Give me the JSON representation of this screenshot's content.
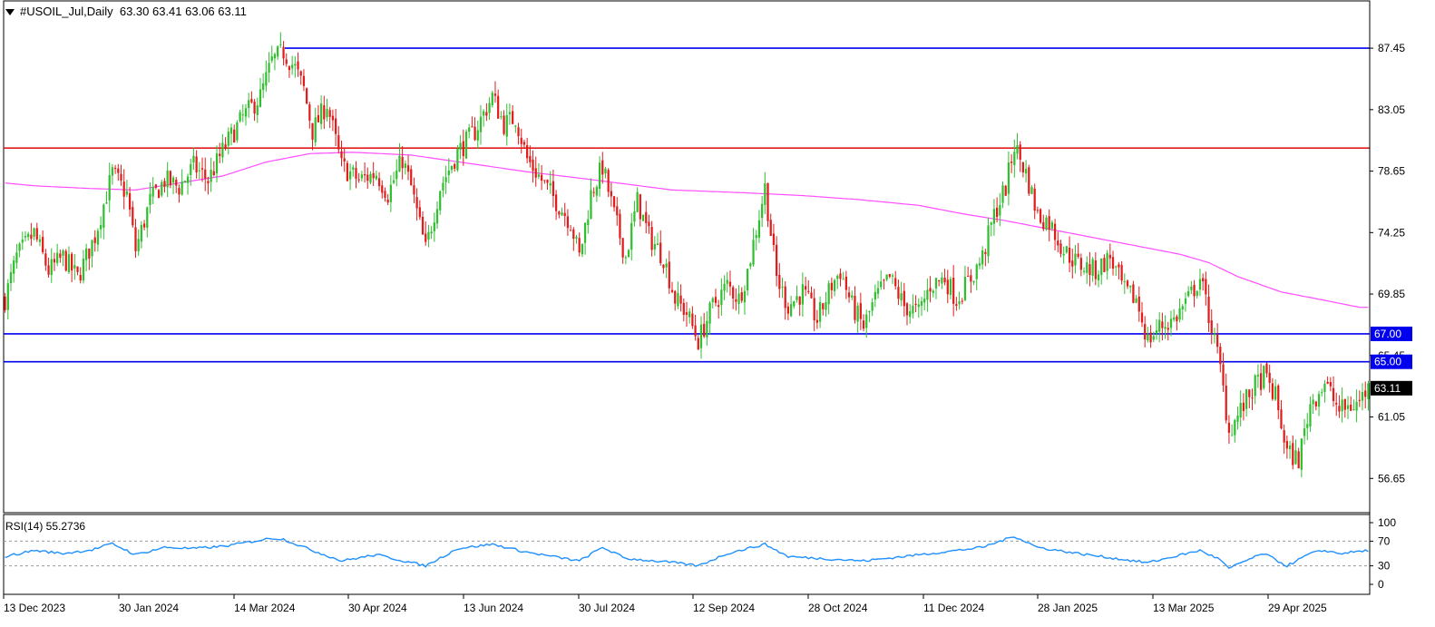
{
  "header": {
    "symbol_label": "#USOIL_Jul,Daily",
    "ohlc": "63.30 63.41 63.06 63.11"
  },
  "rsi_panel": {
    "label": "RSI(14) 55.2736",
    "value": 55.2736,
    "levels": [
      70,
      30
    ],
    "axis_labels": [
      "100",
      "70",
      "30",
      "0"
    ]
  },
  "colors": {
    "bull": "#2fbf2f",
    "bear": "#e21b1b",
    "ma": "#ff4dff",
    "support": "#0000ee",
    "resistance": "#e21b1b",
    "rsi": "#1e90ff",
    "price_tag": "#000000",
    "level_tag": "#0000ee"
  },
  "chart_data": {
    "type": "candlestick",
    "y_ticks": [
      "87.45",
      "83.05",
      "78.65",
      "74.25",
      "69.85",
      "65.45",
      "61.05",
      "56.65"
    ],
    "x_ticks": [
      "13 Dec 2023",
      "30 Jan 2024",
      "14 Mar 2024",
      "30 Apr 2024",
      "13 Jun 2024",
      "30 Jul 2024",
      "12 Sep 2024",
      "28 Oct 2024",
      "11 Dec 2024",
      "28 Jan 2025",
      "13 Mar 2025",
      "29 Apr 2025"
    ],
    "ylim": [
      54.2,
      89.6
    ],
    "horizontal_lines": [
      {
        "price": 87.45,
        "color": "#0000ee"
      },
      {
        "price": 80.3,
        "color": "#e21b1b"
      },
      {
        "price": 67.0,
        "color": "#0000ee",
        "tag": "67.00"
      },
      {
        "price": 65.0,
        "color": "#0000ee",
        "tag": "65.00"
      }
    ],
    "last_price": {
      "price": 63.11,
      "tag": "63.11"
    },
    "close_path": [
      [
        0,
        69.5
      ],
      [
        4,
        72.5
      ],
      [
        10,
        74.2
      ],
      [
        15,
        71.5
      ],
      [
        20,
        72.5
      ],
      [
        25,
        71.0
      ],
      [
        31,
        74.0
      ],
      [
        37,
        78.5
      ],
      [
        42,
        77.0
      ],
      [
        45,
        73.0
      ],
      [
        50,
        76.5
      ],
      [
        55,
        78.0
      ],
      [
        60,
        77.5
      ],
      [
        65,
        79.0
      ],
      [
        70,
        78.0
      ],
      [
        76,
        80.5
      ],
      [
        82,
        82.5
      ],
      [
        88,
        84.0
      ],
      [
        92,
        86.5
      ],
      [
        96,
        87.2
      ],
      [
        100,
        86.0
      ],
      [
        103,
        84.5
      ],
      [
        106,
        81.5
      ],
      [
        111,
        83.5
      ],
      [
        116,
        79.0
      ],
      [
        122,
        78.0
      ],
      [
        128,
        78.5
      ],
      [
        132,
        77.0
      ],
      [
        137,
        79.5
      ],
      [
        140,
        77.5
      ],
      [
        145,
        73.0
      ],
      [
        150,
        77.5
      ],
      [
        156,
        80.0
      ],
      [
        162,
        81.5
      ],
      [
        168,
        84.0
      ],
      [
        172,
        82.0
      ],
      [
        176,
        82.5
      ],
      [
        180,
        79.5
      ],
      [
        185,
        78.0
      ],
      [
        190,
        76.5
      ],
      [
        195,
        75.0
      ],
      [
        198,
        72.5
      ],
      [
        202,
        77.0
      ],
      [
        206,
        79.0
      ],
      [
        210,
        75.5
      ],
      [
        214,
        72.5
      ],
      [
        218,
        76.5
      ],
      [
        222,
        74.0
      ],
      [
        227,
        72.5
      ],
      [
        231,
        69.5
      ],
      [
        235,
        68.5
      ],
      [
        239,
        66.5
      ],
      [
        244,
        69.0
      ],
      [
        249,
        70.5
      ],
      [
        253,
        69.5
      ],
      [
        256,
        71.5
      ],
      [
        259,
        74.5
      ],
      [
        262,
        77.5
      ],
      [
        266,
        71.0
      ],
      [
        270,
        69.0
      ],
      [
        275,
        70.0
      ],
      [
        280,
        68.0
      ],
      [
        285,
        70.5
      ],
      [
        288,
        71.5
      ],
      [
        292,
        69.0
      ],
      [
        296,
        67.5
      ],
      [
        300,
        69.5
      ],
      [
        305,
        71.0
      ],
      [
        310,
        69.0
      ],
      [
        315,
        68.5
      ],
      [
        319,
        70.5
      ],
      [
        324,
        71.0
      ],
      [
        328,
        69.5
      ],
      [
        333,
        71.0
      ],
      [
        337,
        72.5
      ],
      [
        341,
        75.5
      ],
      [
        345,
        77.5
      ],
      [
        348,
        80.5
      ],
      [
        352,
        78.5
      ],
      [
        356,
        75.5
      ],
      [
        360,
        75.0
      ],
      [
        365,
        73.0
      ],
      [
        370,
        72.0
      ],
      [
        376,
        71.5
      ],
      [
        381,
        72.5
      ],
      [
        386,
        70.0
      ],
      [
        390,
        69.5
      ],
      [
        394,
        66.5
      ],
      [
        398,
        67.5
      ],
      [
        403,
        68.0
      ],
      [
        408,
        69.5
      ],
      [
        412,
        71.0
      ],
      [
        416,
        67.5
      ],
      [
        419,
        64.5
      ],
      [
        422,
        60.0
      ],
      [
        426,
        61.5
      ],
      [
        430,
        63.0
      ],
      [
        434,
        64.0
      ],
      [
        438,
        62.5
      ],
      [
        442,
        58.5
      ],
      [
        446,
        58.0
      ],
      [
        450,
        62.0
      ],
      [
        455,
        63.5
      ],
      [
        460,
        61.5
      ],
      [
        466,
        62.0
      ],
      [
        470,
        63.1
      ]
    ],
    "ma_path": [
      [
        0,
        77.8
      ],
      [
        10,
        77.6
      ],
      [
        30,
        77.4
      ],
      [
        45,
        77.3
      ],
      [
        60,
        77.8
      ],
      [
        75,
        78.3
      ],
      [
        90,
        79.3
      ],
      [
        105,
        79.9
      ],
      [
        120,
        80.0
      ],
      [
        140,
        79.8
      ],
      [
        160,
        79.2
      ],
      [
        180,
        78.6
      ],
      [
        200,
        78.1
      ],
      [
        215,
        77.7
      ],
      [
        230,
        77.3
      ],
      [
        255,
        77.1
      ],
      [
        275,
        76.9
      ],
      [
        295,
        76.6
      ],
      [
        315,
        76.2
      ],
      [
        330,
        75.6
      ],
      [
        345,
        75.1
      ],
      [
        360,
        74.5
      ],
      [
        375,
        73.9
      ],
      [
        390,
        73.3
      ],
      [
        405,
        72.7
      ],
      [
        415,
        72.1
      ],
      [
        425,
        71.1
      ],
      [
        440,
        70.0
      ],
      [
        455,
        69.4
      ],
      [
        467,
        68.9
      ]
    ],
    "rsi_path": [
      [
        0,
        45
      ],
      [
        10,
        55
      ],
      [
        20,
        50
      ],
      [
        30,
        56
      ],
      [
        37,
        66
      ],
      [
        45,
        48
      ],
      [
        55,
        60
      ],
      [
        65,
        58
      ],
      [
        76,
        62
      ],
      [
        92,
        75
      ],
      [
        96,
        73
      ],
      [
        106,
        55
      ],
      [
        116,
        38
      ],
      [
        128,
        48
      ],
      [
        145,
        30
      ],
      [
        156,
        58
      ],
      [
        168,
        65
      ],
      [
        180,
        52
      ],
      [
        198,
        38
      ],
      [
        206,
        60
      ],
      [
        214,
        42
      ],
      [
        231,
        35
      ],
      [
        239,
        30
      ],
      [
        249,
        50
      ],
      [
        262,
        65
      ],
      [
        270,
        45
      ],
      [
        296,
        38
      ],
      [
        319,
        50
      ],
      [
        337,
        60
      ],
      [
        348,
        78
      ],
      [
        356,
        60
      ],
      [
        370,
        50
      ],
      [
        394,
        35
      ],
      [
        412,
        55
      ],
      [
        419,
        40
      ],
      [
        422,
        25
      ],
      [
        426,
        35
      ],
      [
        434,
        50
      ],
      [
        442,
        30
      ],
      [
        450,
        50
      ],
      [
        455,
        55
      ],
      [
        460,
        50
      ],
      [
        470,
        55
      ]
    ]
  }
}
